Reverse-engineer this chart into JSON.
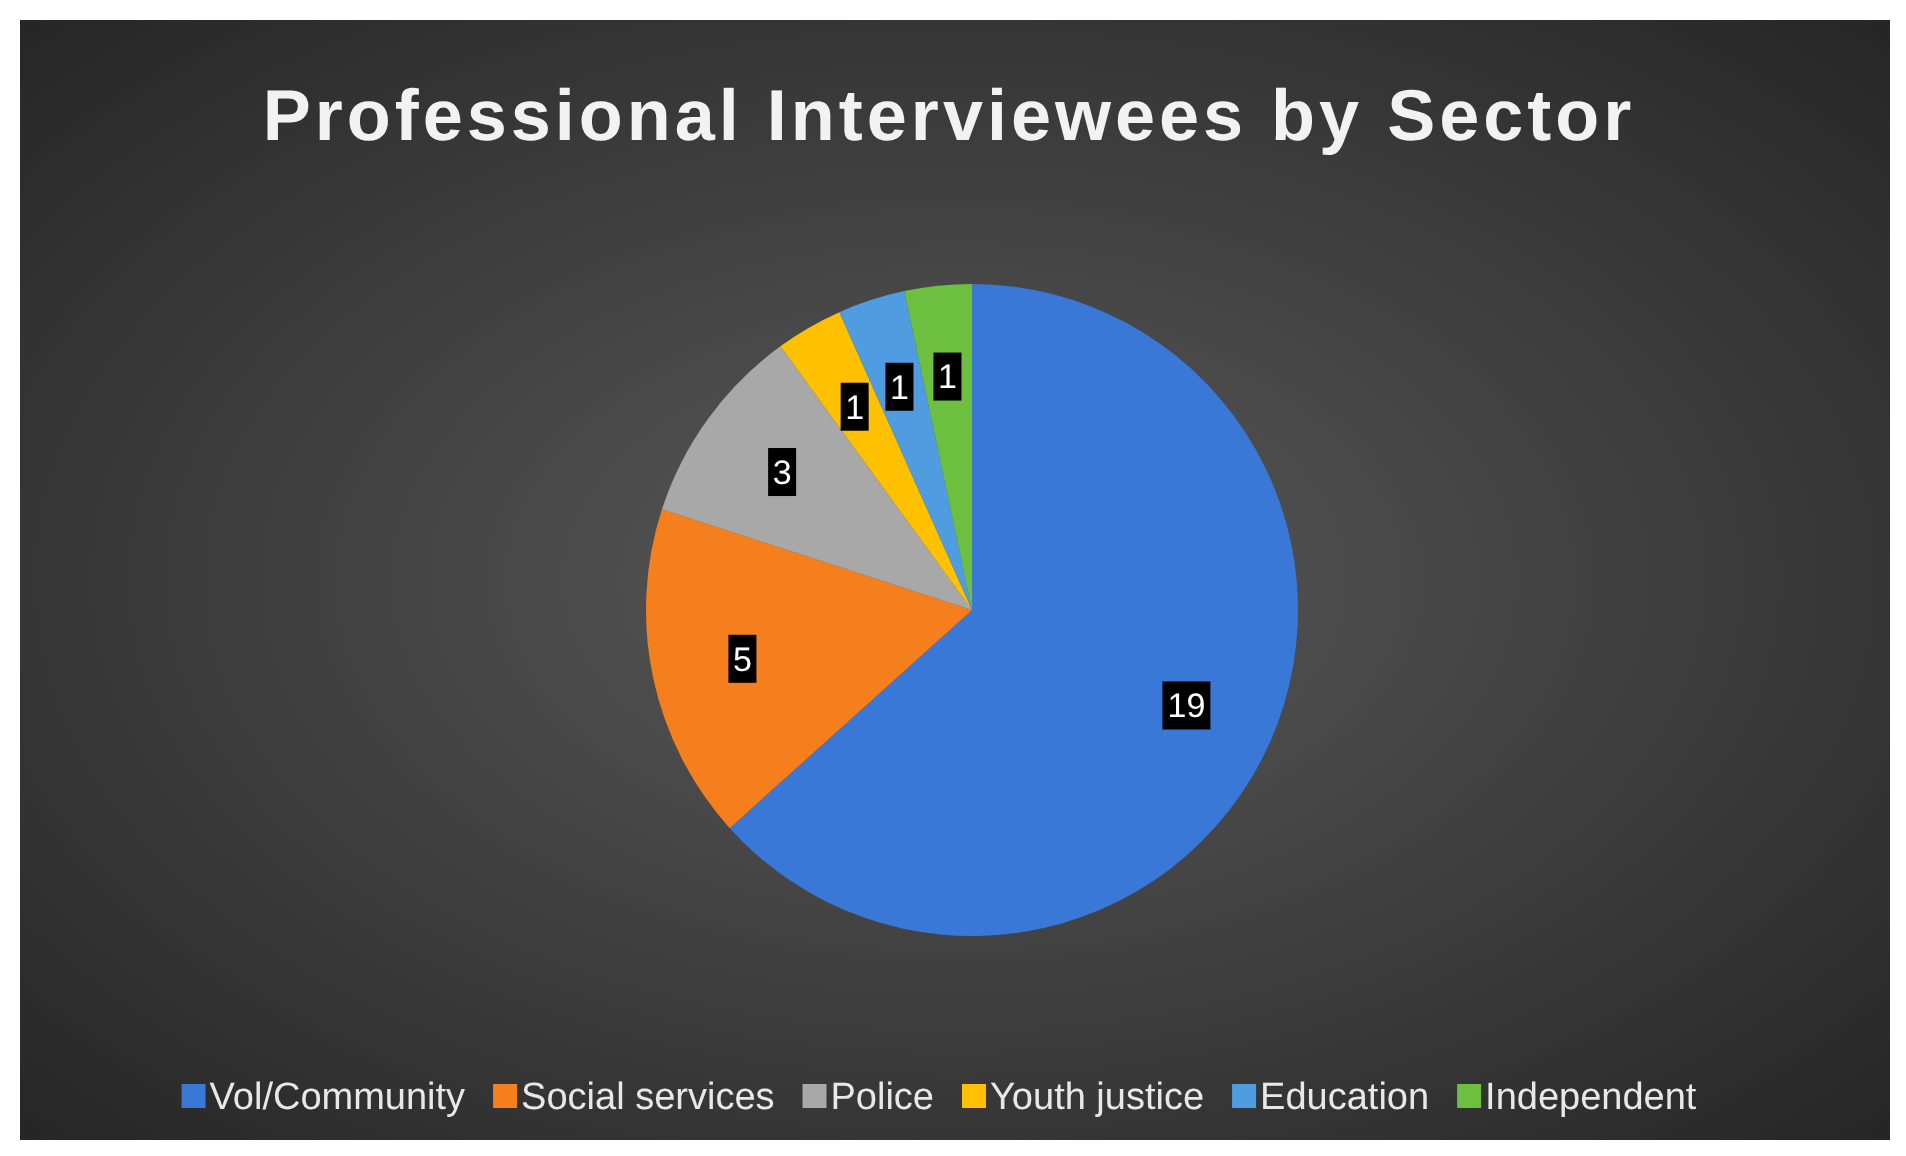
{
  "chart_data": {
    "type": "pie",
    "title": "Professional Interviewees by Sector",
    "categories": [
      "Vol/Community",
      "Social services",
      "Police",
      "Youth justice",
      "Education",
      "Independent"
    ],
    "values": [
      19,
      5,
      3,
      1,
      1,
      1
    ],
    "colors": [
      "#3a78d8",
      "#f47f1c",
      "#a8a8a8",
      "#ffc000",
      "#4f9de0",
      "#6cbf3f"
    ],
    "data_labels": true,
    "legend": "bottom"
  }
}
